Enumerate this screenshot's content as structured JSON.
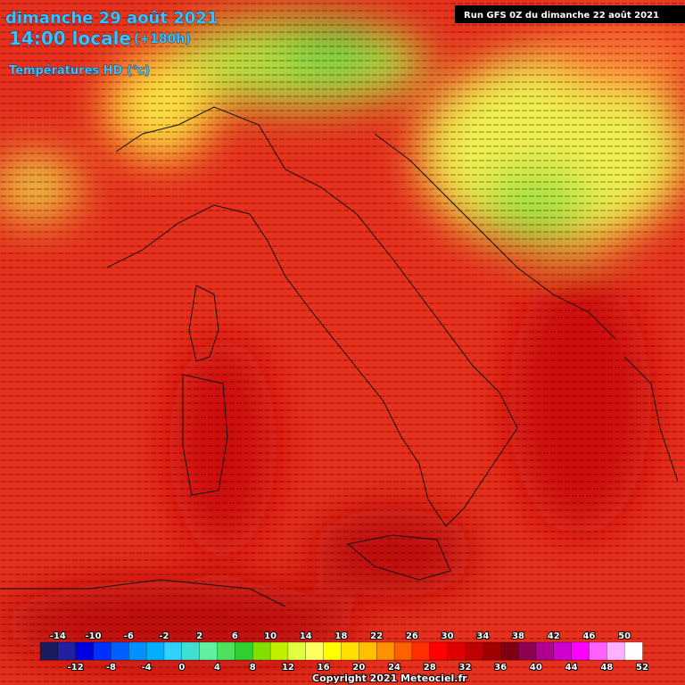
{
  "header": {
    "date": "dimanche 29 août 2021",
    "time": "14:00 locale",
    "lead": "(+180h)",
    "variable": "Températures HD (°c)",
    "run": "Run GFS 0Z du dimanche 22 août 2021"
  },
  "scale": {
    "upper_labels": [
      -14,
      -10,
      -6,
      -2,
      2,
      6,
      10,
      14,
      18,
      22,
      26,
      30,
      34,
      38,
      42,
      46,
      50
    ],
    "lower_labels": [
      -12,
      -8,
      -4,
      0,
      4,
      8,
      12,
      16,
      20,
      24,
      28,
      32,
      36,
      40,
      44,
      48,
      52
    ],
    "colors": [
      "#1a1a60",
      "#2020a0",
      "#0000e0",
      "#0030ff",
      "#0060ff",
      "#0090ff",
      "#00b0ff",
      "#30d0ff",
      "#40e0d0",
      "#60f0a0",
      "#50e060",
      "#30d030",
      "#80e000",
      "#c0f000",
      "#e0ff40",
      "#ffff60",
      "#ffff00",
      "#ffe000",
      "#ffc000",
      "#ff9000",
      "#ff6000",
      "#ff3000",
      "#ff0000",
      "#e00000",
      "#c00000",
      "#a00000",
      "#800010",
      "#900050",
      "#b00090",
      "#d000d0",
      "#ff00ff",
      "#ff60ff",
      "#ffb0ff",
      "#ffffff"
    ]
  },
  "footer": {
    "copyright": "Copyright 2021 Meteociel.fr"
  }
}
